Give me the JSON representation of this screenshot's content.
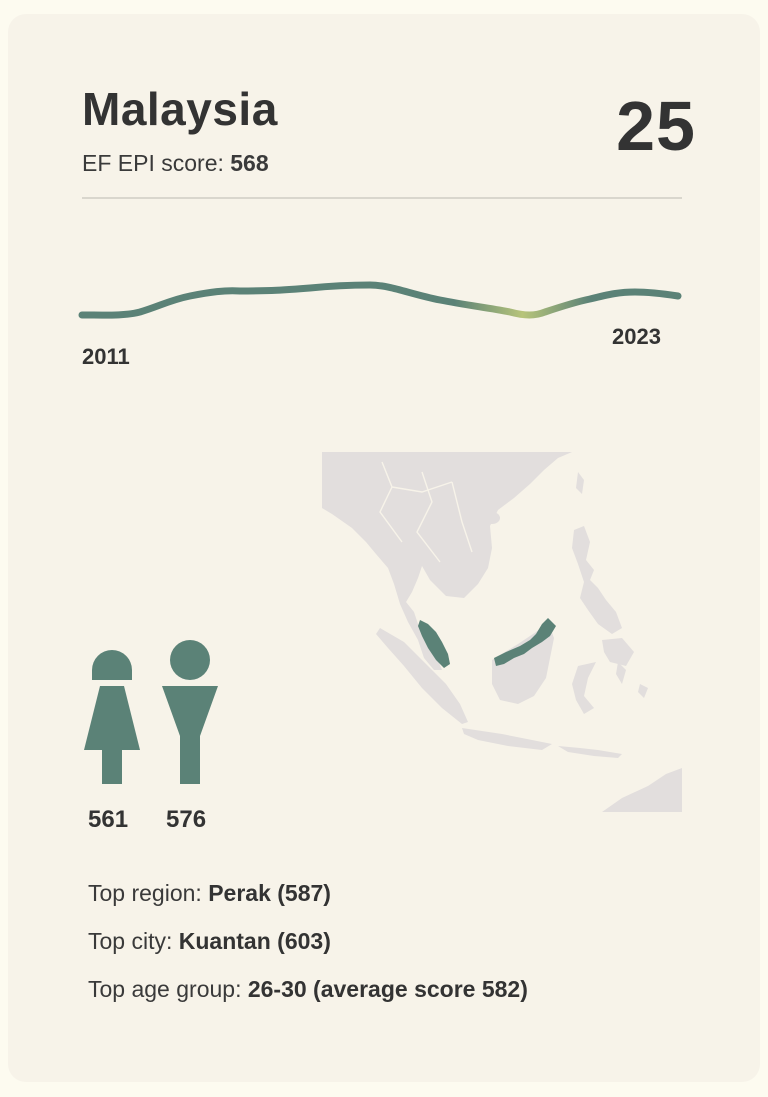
{
  "country": "Malaysia",
  "rank": "25",
  "score": {
    "label": "EF EPI score:",
    "value": "568"
  },
  "trend": {
    "start_year": "2011",
    "end_year": "2023"
  },
  "gender": {
    "female": {
      "icon": "female-icon",
      "value": "561"
    },
    "male": {
      "icon": "male-icon",
      "value": "576"
    }
  },
  "facts": {
    "region_label": "Top region:",
    "region_value": "Perak (587)",
    "city_label": "Top city:",
    "city_value": "Kuantan (603)",
    "age_label": "Top age group:",
    "age_value": "26-30 (average score 582)"
  },
  "colors": {
    "accent": "#5b8277",
    "highlight": "#b7c47a",
    "map_land": "#e2dedd",
    "background": "#f7f3e9"
  }
}
